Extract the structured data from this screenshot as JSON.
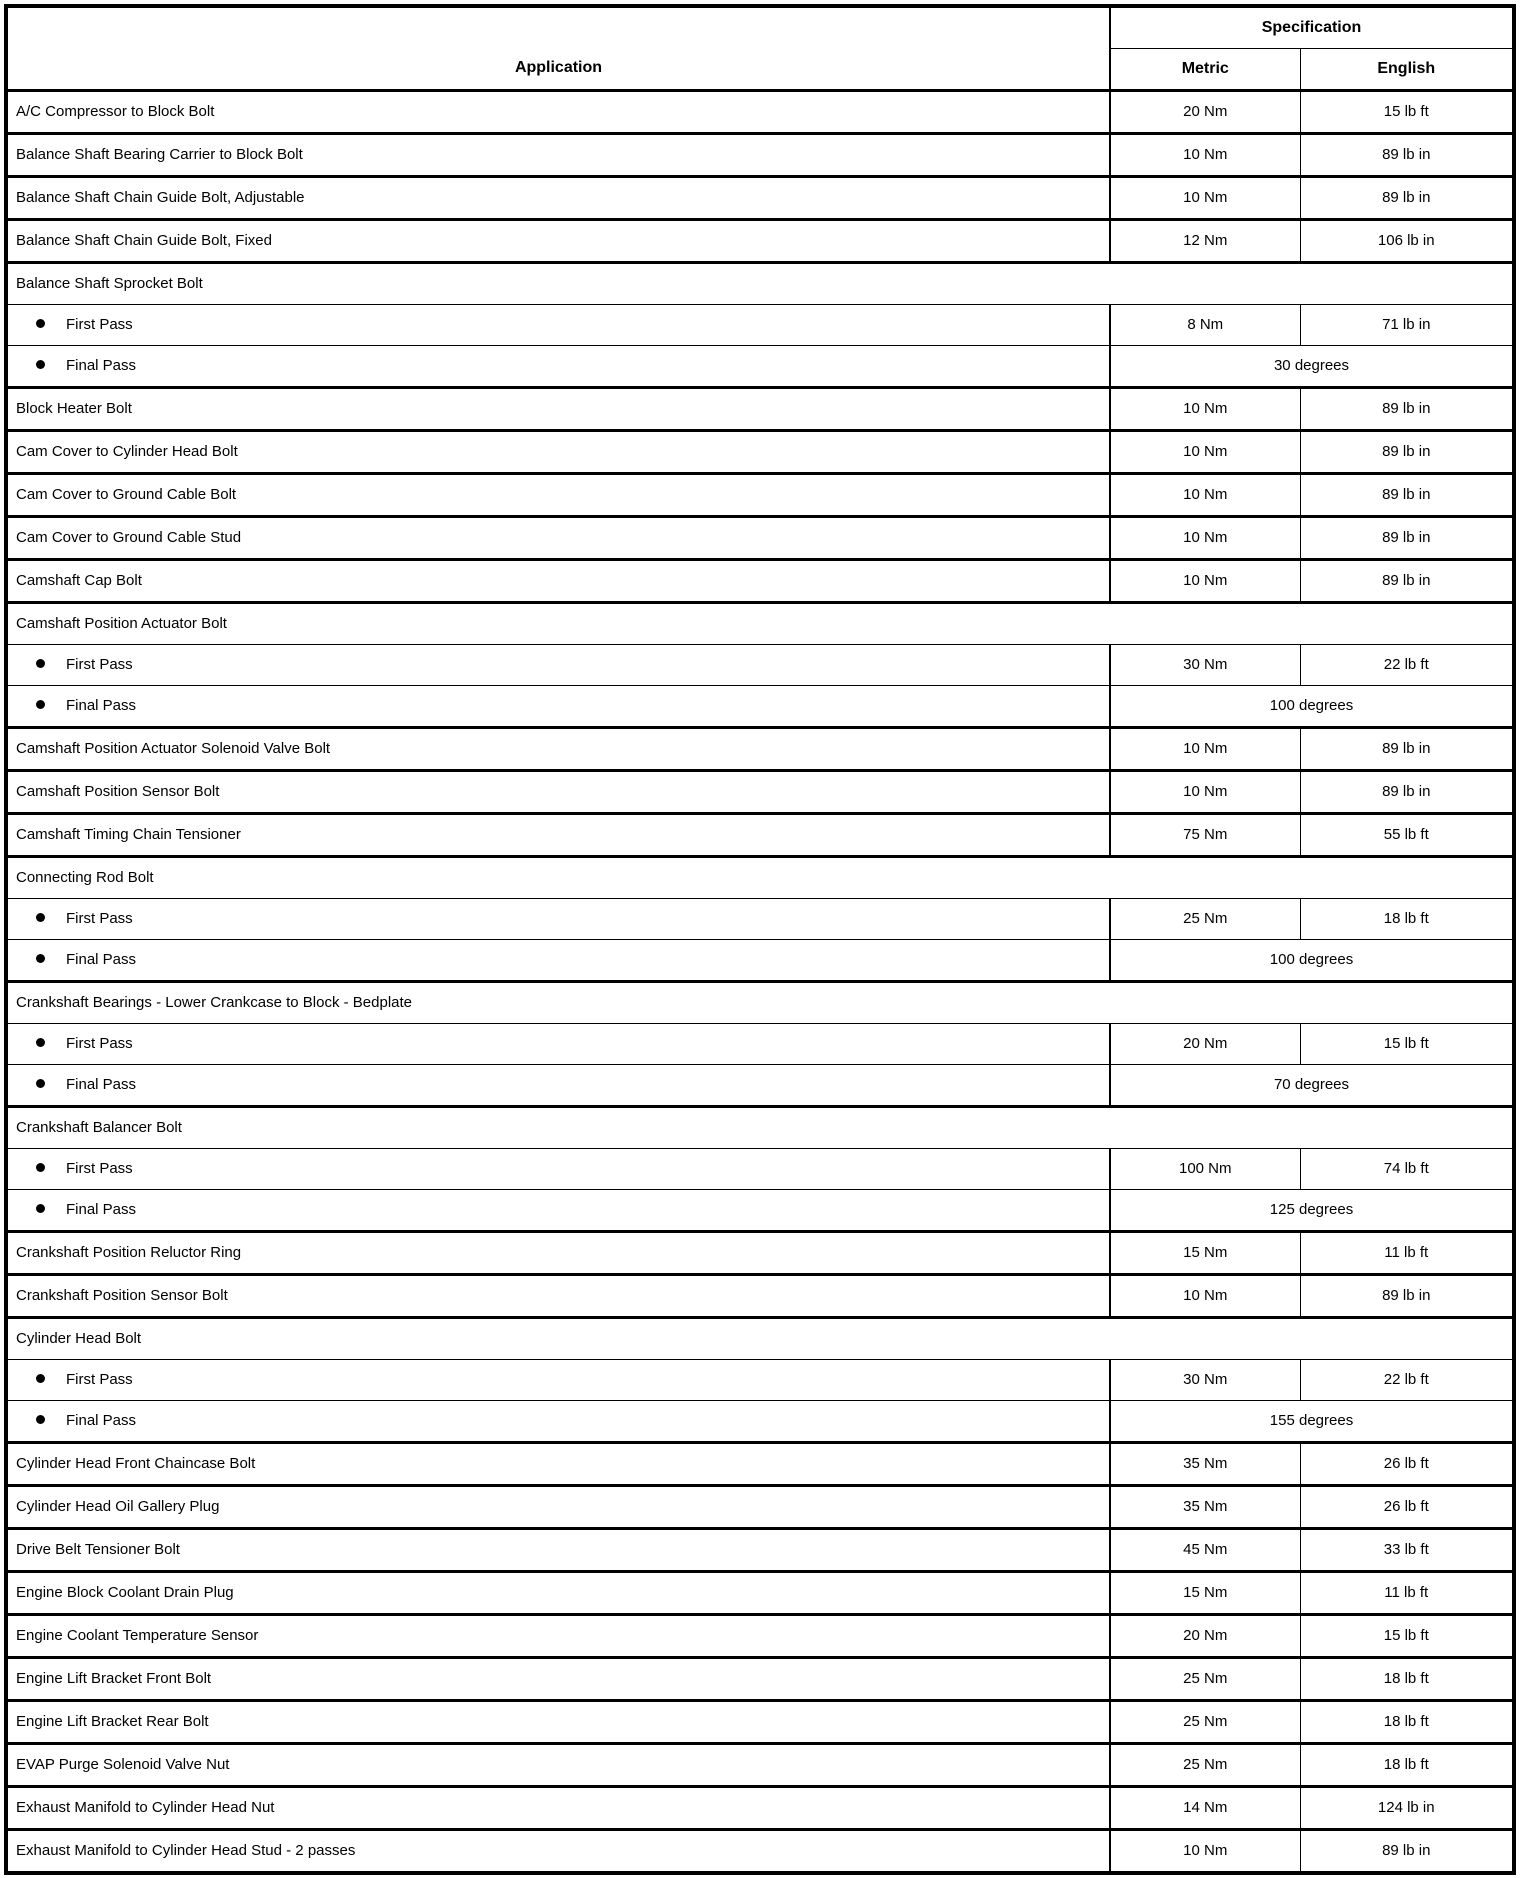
{
  "table": {
    "header": {
      "application": "Application",
      "specification": "Specification",
      "metric": "Metric",
      "english": "English"
    },
    "rows": [
      {
        "type": "item",
        "label": "A/C Compressor to Block Bolt",
        "metric": "20 Nm",
        "english": "15 lb ft"
      },
      {
        "type": "item",
        "label": "Balance Shaft Bearing Carrier to Block Bolt",
        "metric": "10 Nm",
        "english": "89 lb in"
      },
      {
        "type": "item",
        "label": "Balance Shaft Chain Guide Bolt, Adjustable",
        "metric": "10 Nm",
        "english": "89 lb in"
      },
      {
        "type": "item",
        "label": "Balance Shaft Chain Guide Bolt, Fixed",
        "metric": "12 Nm",
        "english": "106 lb in"
      },
      {
        "type": "group",
        "label": "Balance Shaft Sprocket Bolt"
      },
      {
        "type": "sub",
        "label": "First Pass",
        "metric": "8 Nm",
        "english": "71 lb in"
      },
      {
        "type": "sub-span",
        "label": "Final Pass",
        "value": "30 degrees"
      },
      {
        "type": "item",
        "label": "Block Heater Bolt",
        "metric": "10 Nm",
        "english": "89 lb in"
      },
      {
        "type": "item",
        "label": "Cam Cover to Cylinder Head Bolt",
        "metric": "10 Nm",
        "english": "89 lb in"
      },
      {
        "type": "item",
        "label": "Cam Cover to Ground Cable Bolt",
        "metric": "10 Nm",
        "english": "89 lb in"
      },
      {
        "type": "item",
        "label": "Cam Cover to Ground Cable Stud",
        "metric": "10 Nm",
        "english": "89 lb in"
      },
      {
        "type": "item",
        "label": "Camshaft Cap Bolt",
        "metric": "10 Nm",
        "english": "89 lb in"
      },
      {
        "type": "group",
        "label": "Camshaft Position Actuator Bolt"
      },
      {
        "type": "sub",
        "label": "First Pass",
        "metric": "30 Nm",
        "english": "22 lb ft"
      },
      {
        "type": "sub-span",
        "label": "Final Pass",
        "value": "100 degrees"
      },
      {
        "type": "item",
        "label": "Camshaft Position Actuator Solenoid Valve Bolt",
        "metric": "10 Nm",
        "english": "89 lb in"
      },
      {
        "type": "item",
        "label": "Camshaft Position Sensor Bolt",
        "metric": "10 Nm",
        "english": "89 lb in"
      },
      {
        "type": "item",
        "label": "Camshaft Timing Chain Tensioner",
        "metric": "75 Nm",
        "english": "55 lb ft"
      },
      {
        "type": "group",
        "label": "Connecting Rod Bolt"
      },
      {
        "type": "sub",
        "label": "First Pass",
        "metric": "25 Nm",
        "english": "18 lb ft"
      },
      {
        "type": "sub-span",
        "label": "Final Pass",
        "value": "100 degrees"
      },
      {
        "type": "group",
        "label": "Crankshaft Bearings - Lower Crankcase to Block - Bedplate"
      },
      {
        "type": "sub",
        "label": "First Pass",
        "metric": "20 Nm",
        "english": "15 lb ft"
      },
      {
        "type": "sub-span",
        "label": "Final Pass",
        "value": "70 degrees"
      },
      {
        "type": "group",
        "label": "Crankshaft Balancer Bolt"
      },
      {
        "type": "sub",
        "label": "First Pass",
        "metric": "100 Nm",
        "english": "74 lb ft"
      },
      {
        "type": "sub-span",
        "label": "Final Pass",
        "value": "125 degrees"
      },
      {
        "type": "item",
        "label": "Crankshaft Position Reluctor Ring",
        "metric": "15 Nm",
        "english": "11 lb ft"
      },
      {
        "type": "item",
        "label": "Crankshaft Position Sensor Bolt",
        "metric": "10 Nm",
        "english": "89 lb in"
      },
      {
        "type": "group",
        "label": "Cylinder Head Bolt"
      },
      {
        "type": "sub",
        "label": "First Pass",
        "metric": "30 Nm",
        "english": "22 lb ft"
      },
      {
        "type": "sub-span",
        "label": "Final Pass",
        "value": "155 degrees"
      },
      {
        "type": "item",
        "label": "Cylinder Head Front Chaincase Bolt",
        "metric": "35 Nm",
        "english": "26 lb ft"
      },
      {
        "type": "item",
        "label": "Cylinder Head Oil Gallery Plug",
        "metric": "35 Nm",
        "english": "26 lb ft"
      },
      {
        "type": "item",
        "label": "Drive Belt Tensioner Bolt",
        "metric": "45 Nm",
        "english": "33 lb ft"
      },
      {
        "type": "item",
        "label": "Engine Block Coolant Drain Plug",
        "metric": "15 Nm",
        "english": "11 lb ft"
      },
      {
        "type": "item",
        "label": "Engine Coolant Temperature Sensor",
        "metric": "20 Nm",
        "english": "15 lb ft"
      },
      {
        "type": "item",
        "label": "Engine Lift Bracket Front Bolt",
        "metric": "25 Nm",
        "english": "18 lb ft"
      },
      {
        "type": "item",
        "label": "Engine Lift Bracket Rear Bolt",
        "metric": "25 Nm",
        "english": "18 lb ft"
      },
      {
        "type": "item",
        "label": "EVAP Purge Solenoid Valve Nut",
        "metric": "25 Nm",
        "english": "18 lb ft"
      },
      {
        "type": "item",
        "label": "Exhaust Manifold to Cylinder Head Nut",
        "metric": "14 Nm",
        "english": "124 lb in"
      },
      {
        "type": "item",
        "label": "Exhaust Manifold to Cylinder Head Stud - 2 passes",
        "metric": "10 Nm",
        "english": "89 lb in"
      }
    ]
  }
}
